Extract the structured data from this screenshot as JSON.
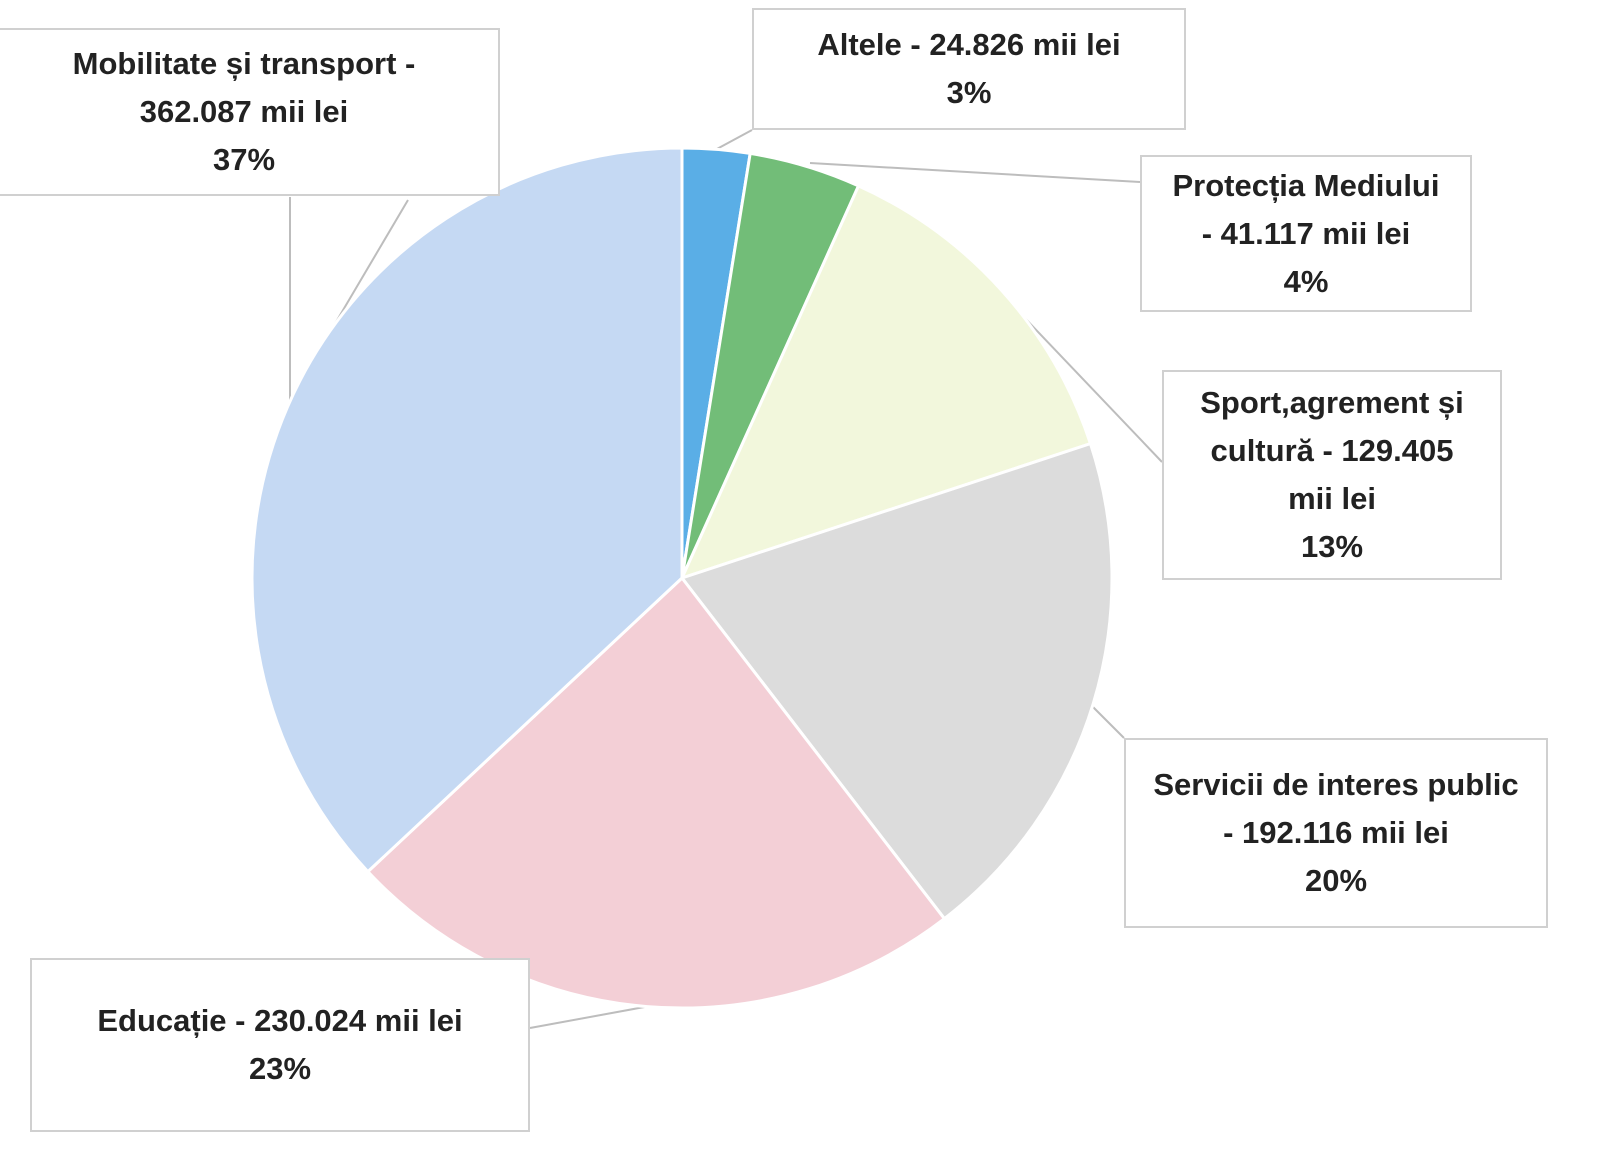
{
  "chart_data": {
    "type": "pie",
    "title": "",
    "unit": "mii lei",
    "start_angle_deg": 0,
    "direction": "clockwise",
    "slices": [
      {
        "name": "Altele",
        "value": 24826,
        "percent": 3,
        "color": "#5aaee6",
        "label_lines": [
          "Altele - 24.826 mii lei",
          "3%"
        ]
      },
      {
        "name": "Protecția Mediului",
        "value": 41117,
        "percent": 4,
        "color": "#72bd78",
        "label_lines": [
          "Protecția Mediului",
          "- 41.117 mii lei",
          "4%"
        ]
      },
      {
        "name": "Sport,agrement și cultură",
        "value": 129405,
        "percent": 13,
        "color": "#f2f7dc",
        "label_lines": [
          "Sport,agrement și",
          "cultură - 129.405",
          "mii lei",
          "13%"
        ]
      },
      {
        "name": "Servicii de interes public",
        "value": 192116,
        "percent": 20,
        "color": "#dcdcdc",
        "label_lines": [
          "Servicii de interes public",
          "- 192.116 mii lei",
          "20%"
        ]
      },
      {
        "name": "Educație",
        "value": 230024,
        "percent": 23,
        "color": "#f3cfd6",
        "label_lines": [
          "Educație - 230.024 mii lei",
          "23%"
        ]
      },
      {
        "name": "Mobilitate și transport",
        "value": 362087,
        "percent": 37,
        "color": "#c5d9f3",
        "label_lines": [
          "Mobilitate și transport -",
          "362.087 mii lei",
          "37%"
        ]
      }
    ]
  }
}
